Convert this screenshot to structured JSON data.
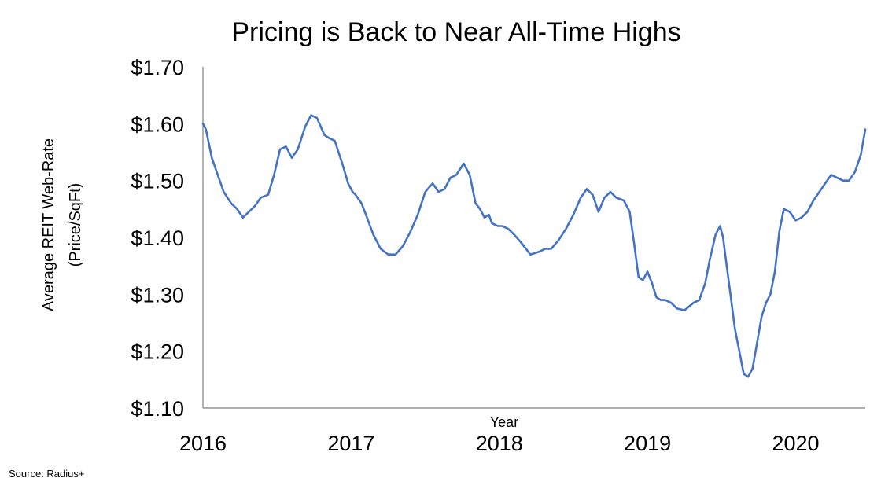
{
  "chart_data": {
    "type": "line",
    "title": "Pricing is Back to Near All-Time Highs",
    "xlabel": "Year",
    "ylabel_line1": "Average REIT Web-Rate",
    "ylabel_line2": "(Price/SqFt)",
    "source": "Source: Radius+",
    "xlim": [
      2016.0,
      2020.47
    ],
    "ylim": [
      1.1,
      1.7
    ],
    "x_ticks": [
      {
        "value": 2016,
        "label": "2016"
      },
      {
        "value": 2017,
        "label": "2017"
      },
      {
        "value": 2018,
        "label": "2018"
      },
      {
        "value": 2019,
        "label": "2019"
      },
      {
        "value": 2020,
        "label": "2020"
      }
    ],
    "y_ticks": [
      {
        "value": 1.1,
        "label": "$1.10"
      },
      {
        "value": 1.2,
        "label": "$1.20"
      },
      {
        "value": 1.3,
        "label": "$1.30"
      },
      {
        "value": 1.4,
        "label": "$1.40"
      },
      {
        "value": 1.5,
        "label": "$1.50"
      },
      {
        "value": 1.6,
        "label": "$1.60"
      },
      {
        "value": 1.7,
        "label": "$1.70"
      }
    ],
    "grid": false,
    "legend": "none",
    "line_color": "#4472C4",
    "series": [
      {
        "x": [
          2016.0,
          2016.02,
          2016.06,
          2016.1,
          2016.14,
          2016.19,
          2016.23,
          2016.27,
          2016.31,
          2016.35,
          2016.39,
          2016.44,
          2016.48,
          2016.52,
          2016.56,
          2016.6,
          2016.64,
          2016.69,
          2016.73,
          2016.77,
          2016.82,
          2016.85,
          2016.89,
          2016.94,
          2016.98,
          2017.01,
          2017.03,
          2017.07,
          2017.1,
          2017.15,
          2017.2,
          2017.25,
          2017.3,
          2017.35,
          2017.4,
          2017.45,
          2017.5,
          2017.55,
          2017.59,
          2017.63,
          2017.67,
          2017.71,
          2017.76,
          2017.8,
          2017.84,
          2017.87,
          2017.9,
          2017.93,
          2017.95,
          2017.99,
          2018.02,
          2018.06,
          2018.1,
          2018.15,
          2018.21,
          2018.27,
          2018.31,
          2018.35,
          2018.4,
          2018.45,
          2018.5,
          2018.55,
          2018.59,
          2018.63,
          2018.67,
          2018.71,
          2018.75,
          2018.79,
          2018.84,
          2018.88,
          2018.91,
          2018.94,
          2018.97,
          2019.0,
          2019.03,
          2019.06,
          2019.09,
          2019.12,
          2019.16,
          2019.2,
          2019.25,
          2019.31,
          2019.35,
          2019.39,
          2019.42,
          2019.46,
          2019.49,
          2019.51,
          2019.53,
          2019.56,
          2019.59,
          2019.62,
          2019.65,
          2019.68,
          2019.71,
          2019.74,
          2019.77,
          2019.8,
          2019.83,
          2019.86,
          2019.89,
          2019.92,
          2019.96,
          2020.0,
          2020.04,
          2020.08,
          2020.12,
          2020.16,
          2020.2,
          2020.24,
          2020.28,
          2020.32,
          2020.36,
          2020.4,
          2020.44,
          2020.47
        ],
        "values": [
          1.6,
          1.59,
          1.54,
          1.51,
          1.48,
          1.46,
          1.45,
          1.435,
          1.445,
          1.455,
          1.47,
          1.475,
          1.51,
          1.555,
          1.56,
          1.54,
          1.555,
          1.595,
          1.615,
          1.61,
          1.58,
          1.575,
          1.57,
          1.53,
          1.495,
          1.48,
          1.475,
          1.46,
          1.44,
          1.405,
          1.38,
          1.37,
          1.37,
          1.385,
          1.41,
          1.44,
          1.48,
          1.495,
          1.48,
          1.485,
          1.505,
          1.51,
          1.53,
          1.51,
          1.46,
          1.45,
          1.435,
          1.44,
          1.425,
          1.42,
          1.42,
          1.415,
          1.405,
          1.39,
          1.37,
          1.375,
          1.38,
          1.38,
          1.395,
          1.415,
          1.44,
          1.47,
          1.485,
          1.475,
          1.445,
          1.47,
          1.48,
          1.47,
          1.465,
          1.445,
          1.39,
          1.33,
          1.325,
          1.34,
          1.32,
          1.295,
          1.29,
          1.29,
          1.285,
          1.275,
          1.272,
          1.285,
          1.29,
          1.32,
          1.36,
          1.405,
          1.42,
          1.4,
          1.36,
          1.3,
          1.24,
          1.2,
          1.16,
          1.155,
          1.17,
          1.215,
          1.26,
          1.285,
          1.3,
          1.34,
          1.41,
          1.45,
          1.445,
          1.43,
          1.435,
          1.445,
          1.465,
          1.48,
          1.495,
          1.51,
          1.505,
          1.5,
          1.5,
          1.515,
          1.545,
          1.59
        ]
      }
    ]
  }
}
